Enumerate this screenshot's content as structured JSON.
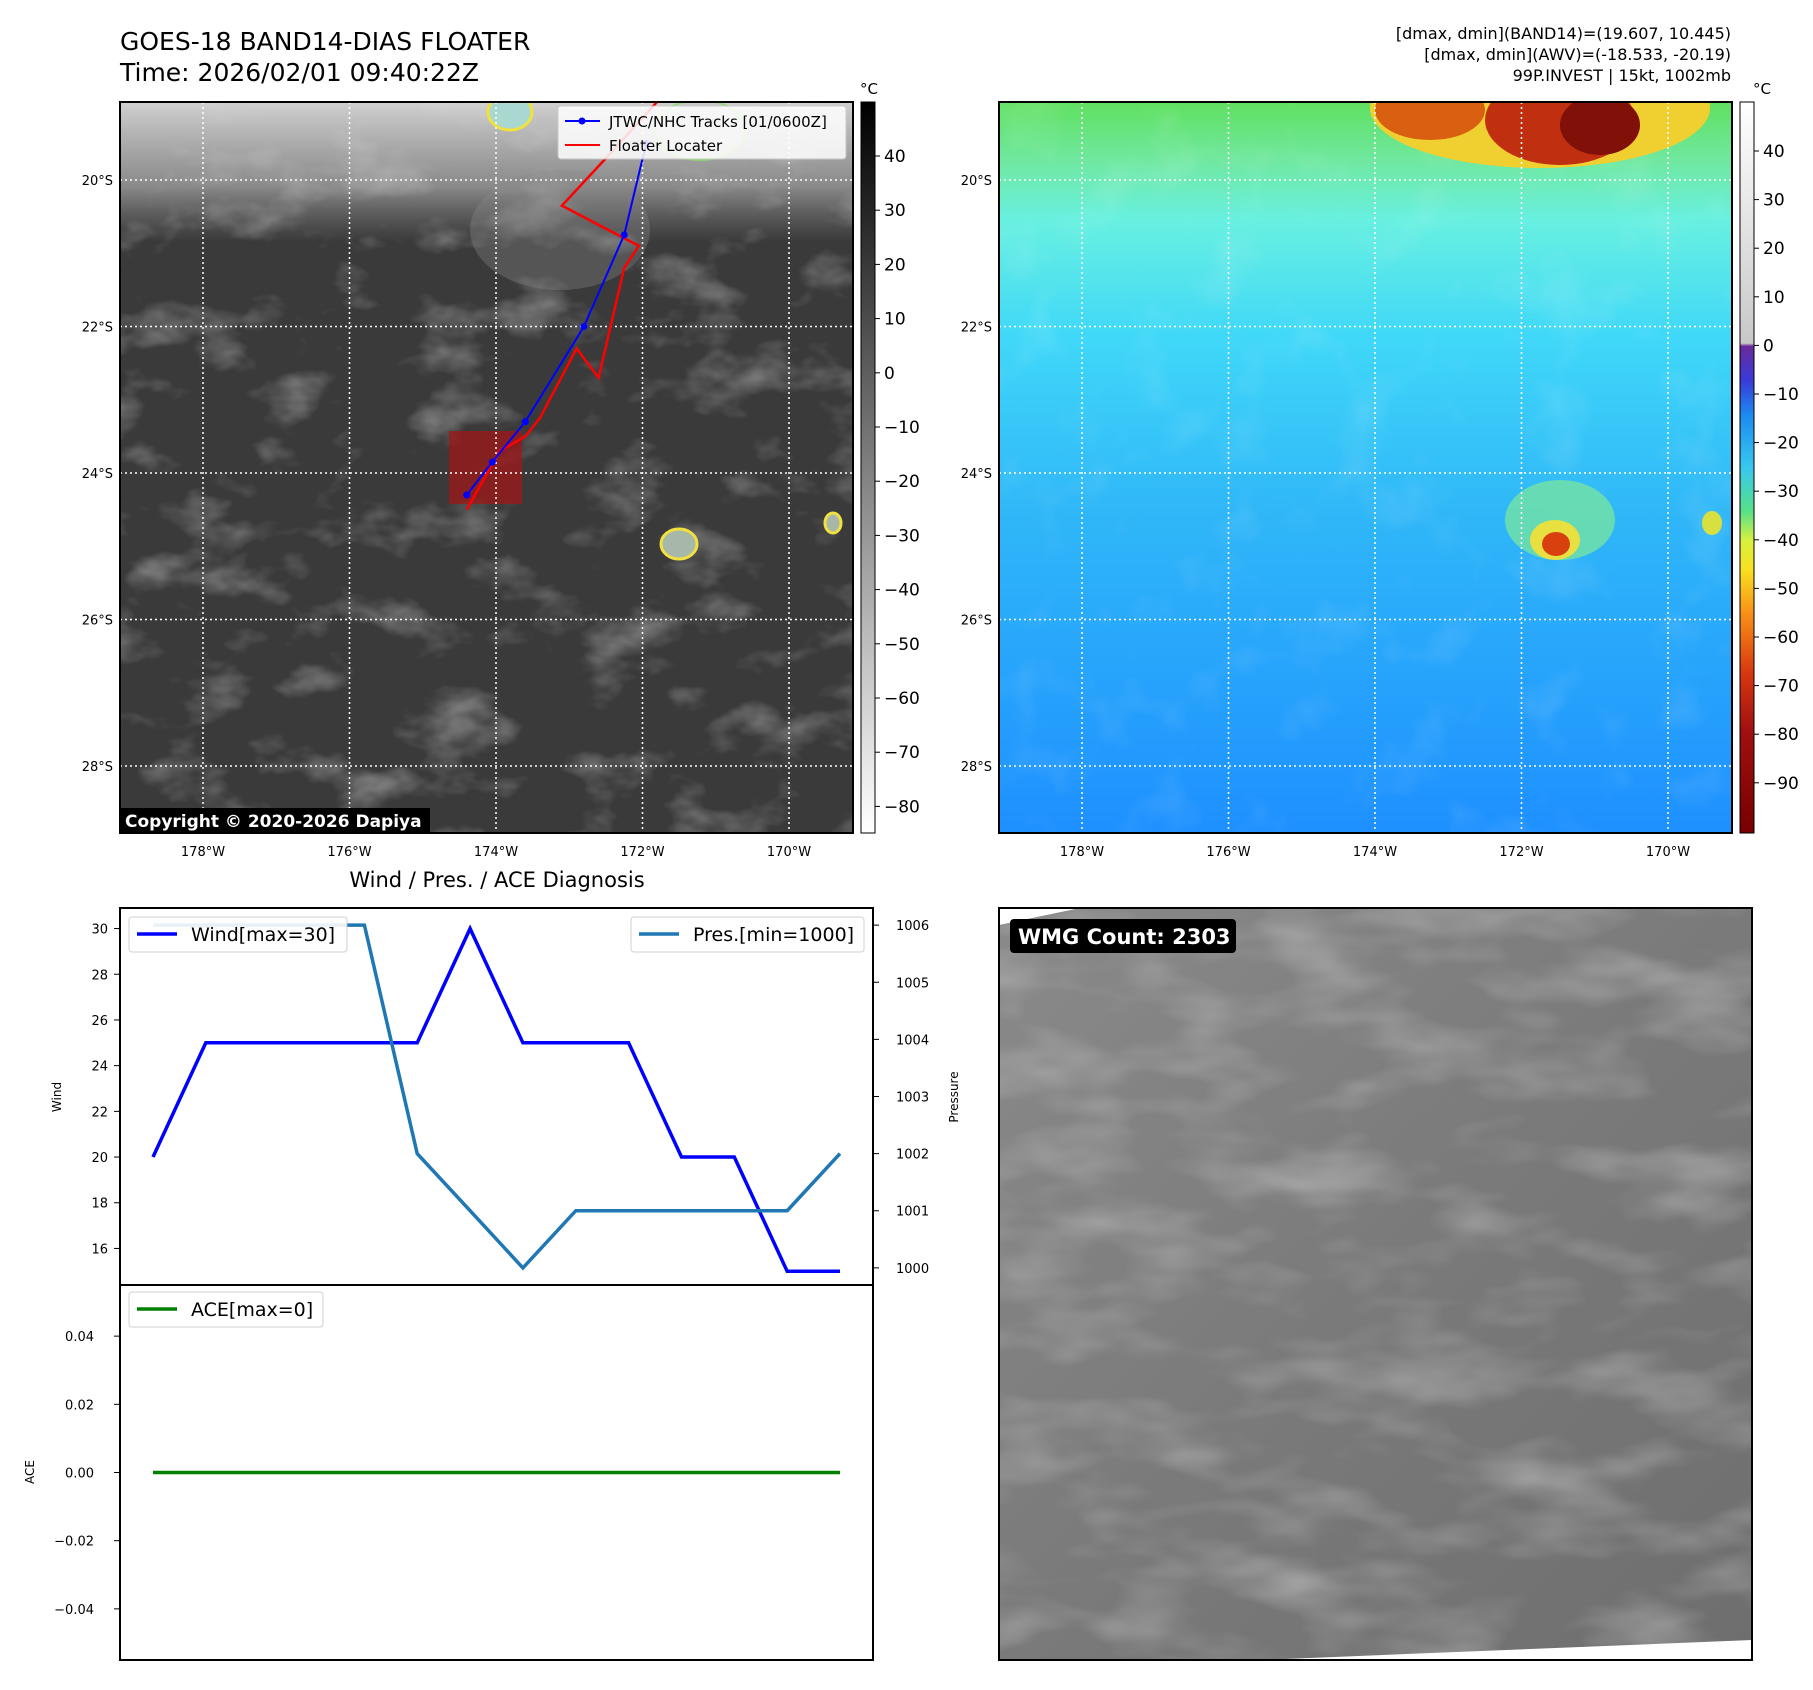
{
  "header": {
    "title": "GOES-18 BAND14-DIAS FLOATER",
    "time": "Time: 2026/02/01 09:40:22Z",
    "stats_line1": "[dmax, dmin](BAND14)=(19.607, 10.445)",
    "stats_line2": "[dmax, dmin](AWV)=(-18.533, -20.19)",
    "stats_line3": "99P.INVEST | 15kt, 1002mb"
  },
  "maps": {
    "lat_ticks": [
      "20°S",
      "22°S",
      "24°S",
      "26°S",
      "28°S"
    ],
    "lon_ticks": [
      "178°W",
      "176°W",
      "174°W",
      "172°W",
      "170°W"
    ],
    "colorbar_unit": "°C",
    "ir_colorbar_ticks": [
      "40",
      "30",
      "20",
      "10",
      "0",
      "−10",
      "−20",
      "−30",
      "−40",
      "−50",
      "−60",
      "−70",
      "−80"
    ],
    "color_colorbar_ticks": [
      "40",
      "30",
      "20",
      "10",
      "0",
      "−10",
      "−20",
      "−30",
      "−40",
      "−50",
      "−60",
      "−70",
      "−80",
      "−90"
    ],
    "legend_tracks": "JTWC/NHC Tracks [01/0600Z]",
    "legend_floater": "Floater Locater",
    "copyright": "Copyright © 2020-2026 Dapiya"
  },
  "diagnosis": {
    "title": "Wind / Pres. / ACE Diagnosis",
    "wind_axis_label": "Wind",
    "pressure_axis_label": "Pressure",
    "ace_axis_label": "ACE",
    "wind_legend": "Wind[max=30]",
    "pressure_legend": "Pres.[min=1000]",
    "ace_legend": "ACE[max=0]"
  },
  "wmg": {
    "count_label": "WMG Count: 2303"
  },
  "colors": {
    "wind": "#0000ff",
    "pressure": "#1f77b4",
    "ace": "#008000",
    "track": "#0000ff",
    "floater": "#ff0000"
  },
  "chart_data": [
    {
      "type": "line",
      "name": "wind",
      "y_ticks": [
        16,
        18,
        20,
        22,
        24,
        26,
        28,
        30
      ],
      "ylim": [
        14.4,
        30.9
      ],
      "values": [
        20,
        25,
        25,
        25,
        25,
        25,
        30,
        25,
        25,
        25,
        20,
        20,
        15,
        15
      ]
    },
    {
      "type": "line",
      "name": "pressure",
      "y_ticks": [
        1000,
        1001,
        1002,
        1003,
        1004,
        1005,
        1006
      ],
      "ylim": [
        999.7,
        1006.3
      ],
      "values": [
        1006,
        1006,
        1006,
        1006,
        1006,
        1002,
        1001,
        1000,
        1001,
        1001,
        1001,
        1001,
        1001,
        1002
      ]
    },
    {
      "type": "line",
      "name": "ace",
      "y_ticks": [
        -0.04,
        -0.02,
        0.0,
        0.02,
        0.04
      ],
      "y_tick_labels": [
        "−0.04",
        "−0.02",
        "0.00",
        "0.02",
        "0.04"
      ],
      "ylim": [
        -0.055,
        0.055
      ],
      "values": [
        0,
        0,
        0,
        0,
        0,
        0,
        0,
        0,
        0,
        0,
        0,
        0,
        0,
        0
      ]
    },
    {
      "type": "line",
      "name": "tracks",
      "x_unit": "lon",
      "y_unit": "lat",
      "jtwc_track": [
        [
          -171.95,
          -19.5
        ],
        [
          -172.25,
          -20.75
        ],
        [
          -172.8,
          -22.0
        ],
        [
          -173.6,
          -23.3
        ],
        [
          -174.05,
          -23.85
        ],
        [
          -174.4,
          -24.3
        ]
      ],
      "floater_track": [
        [
          -171.5,
          -18.6
        ],
        [
          -172.45,
          -19.65
        ],
        [
          -173.1,
          -20.35
        ],
        [
          -172.05,
          -20.9
        ],
        [
          -172.25,
          -21.2
        ],
        [
          -172.6,
          -22.7
        ],
        [
          -172.9,
          -22.3
        ],
        [
          -173.4,
          -23.25
        ],
        [
          -173.6,
          -23.5
        ],
        [
          -173.95,
          -23.7
        ],
        [
          -174.4,
          -24.5
        ]
      ]
    }
  ]
}
